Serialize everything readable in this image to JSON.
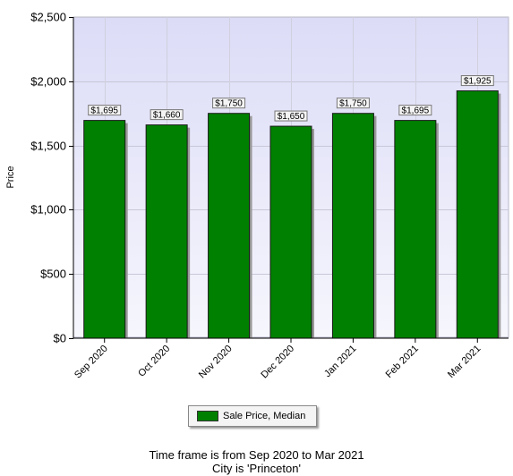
{
  "chart_data": {
    "type": "bar",
    "categories": [
      "Sep 2020",
      "Oct 2020",
      "Nov 2020",
      "Dec 2020",
      "Jan 2021",
      "Feb 2021",
      "Mar 2021"
    ],
    "values": [
      1695,
      1660,
      1750,
      1650,
      1750,
      1695,
      1925
    ],
    "data_labels": [
      "$1,695",
      "$1,660",
      "$1,750",
      "$1,650",
      "$1,750",
      "$1,695",
      "$1,925"
    ],
    "series": [
      {
        "name": "Sale Price, Median",
        "values": [
          1695,
          1660,
          1750,
          1650,
          1750,
          1695,
          1925
        ]
      }
    ],
    "ylabel": "Price",
    "xlabel": "",
    "ylim": [
      0,
      2500
    ],
    "yticks": [
      0,
      500,
      1000,
      1500,
      2000,
      2500
    ],
    "ytick_labels": [
      "$0",
      "$500",
      "$1,000",
      "$1,500",
      "$2,000",
      "$2,500"
    ],
    "grid": true,
    "legend_position": "bottom-center",
    "bar_color": "#008000",
    "plot_background": "#eaeafa"
  },
  "legend": {
    "label": "Sale Price, Median"
  },
  "footer": {
    "line1": "Time frame is from Sep 2020 to Mar 2021",
    "line2": "City is 'Princeton'"
  }
}
